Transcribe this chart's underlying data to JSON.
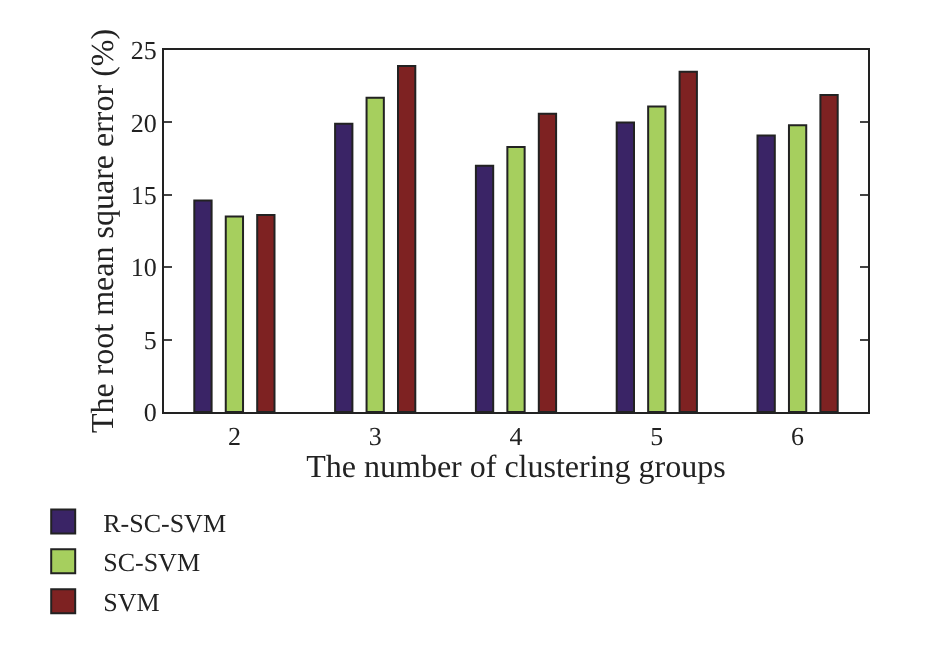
{
  "chart_data": {
    "type": "bar",
    "xlabel": "The number of clustering groups",
    "ylabel": "The root mean square error (%)",
    "categories": [
      "2",
      "3",
      "4",
      "5",
      "6"
    ],
    "series": [
      {
        "name": "R-SC-SVM",
        "color": "#3a2466",
        "values": [
          14.6,
          19.9,
          17.0,
          20.0,
          19.1
        ]
      },
      {
        "name": "SC-SVM",
        "color": "#a6cf5e",
        "values": [
          13.5,
          21.7,
          18.3,
          21.1,
          19.8
        ]
      },
      {
        "name": "SVM",
        "color": "#7e2222",
        "values": [
          13.6,
          23.9,
          20.6,
          23.5,
          21.9
        ]
      }
    ],
    "ylim": [
      0,
      25
    ],
    "yticks": [
      0,
      5,
      10,
      15,
      20,
      25
    ],
    "legend": "bottom left"
  }
}
